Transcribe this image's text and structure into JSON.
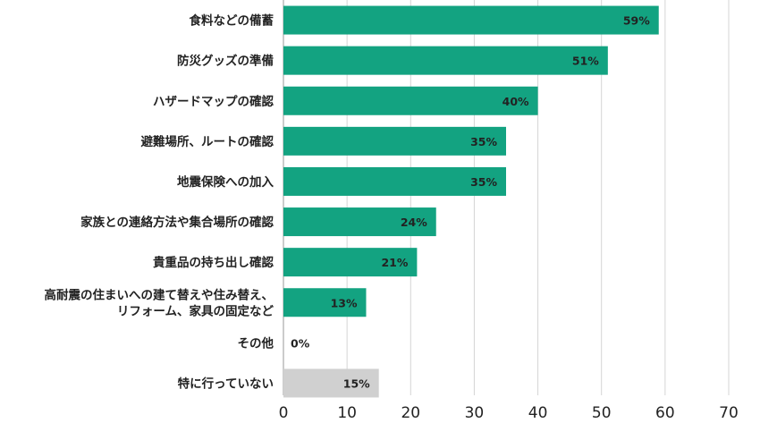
{
  "chart_data": {
    "type": "bar",
    "orientation": "horizontal",
    "title": "",
    "xlabel": "",
    "ylabel": "",
    "xlim": [
      0,
      70
    ],
    "xticks": [
      0,
      10,
      20,
      30,
      40,
      50,
      60,
      70
    ],
    "grid": true,
    "value_suffix": "%",
    "colors": {
      "primary": "#13a381",
      "secondary": "#d0d0d0"
    },
    "categories": [
      [
        "食料などの備蓄"
      ],
      [
        "防災グッズの準備"
      ],
      [
        "ハザードマップの確認"
      ],
      [
        "避難場所、ルートの確認"
      ],
      [
        "地震保険への加入"
      ],
      [
        "家族との連絡方法や集合場所の確認"
      ],
      [
        "貴重品の持ち出し確認"
      ],
      [
        "高耐震の住まいへの建て替えや住み替え、",
        "リフォーム、家具の固定など"
      ],
      [
        "その他"
      ],
      [
        "特に行っていない"
      ]
    ],
    "values": [
      59,
      51,
      40,
      35,
      35,
      24,
      21,
      13,
      0,
      15
    ],
    "value_labels": [
      "59%",
      "51%",
      "40%",
      "35%",
      "35%",
      "24%",
      "21%",
      "13%",
      "0%",
      "15%"
    ],
    "bar_colors": [
      "primary",
      "primary",
      "primary",
      "primary",
      "primary",
      "primary",
      "primary",
      "primary",
      "primary",
      "secondary"
    ]
  }
}
